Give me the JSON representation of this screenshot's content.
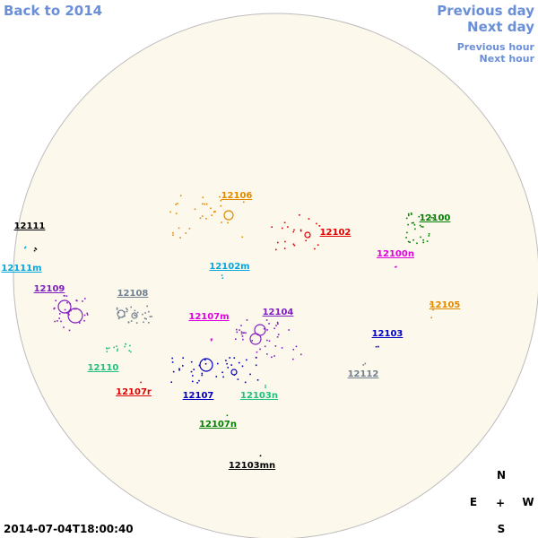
{
  "nav": {
    "back": "Back to 2014",
    "previous_day": "Previous day",
    "next_day": "Next day",
    "previous_hour": "Previous hour",
    "next_hour": "Next hour"
  },
  "timestamp": "2014-07-04T18:00:40",
  "compass": {
    "north": "N",
    "east": "E",
    "center": "+",
    "west": "W",
    "south": "S"
  },
  "regions": [
    {
      "label": "12106",
      "color": "#e08a00"
    },
    {
      "label": "12102",
      "color": "#e00000"
    },
    {
      "label": "12100",
      "color": "#008000"
    },
    {
      "label": "12111",
      "color": "#000000"
    },
    {
      "label": "12111m",
      "color": "#00a8e0"
    },
    {
      "label": "12100n",
      "color": "#e000e0"
    },
    {
      "label": "12102m",
      "color": "#00a8e0"
    },
    {
      "label": "12109",
      "color": "#8020c0"
    },
    {
      "label": "12108",
      "color": "#708090"
    },
    {
      "label": "12105",
      "color": "#e08a00"
    },
    {
      "label": "12107m",
      "color": "#e000e0"
    },
    {
      "label": "12104",
      "color": "#8020c0"
    },
    {
      "label": "12103",
      "color": "#0000c0"
    },
    {
      "label": "12110",
      "color": "#20c080"
    },
    {
      "label": "12112",
      "color": "#708090"
    },
    {
      "label": "12107r",
      "color": "#e00000"
    },
    {
      "label": "12107",
      "color": "#0000c0"
    },
    {
      "label": "12103n",
      "color": "#20c080"
    },
    {
      "label": "12107n",
      "color": "#008000"
    },
    {
      "label": "12103mn",
      "color": "#000000"
    }
  ]
}
